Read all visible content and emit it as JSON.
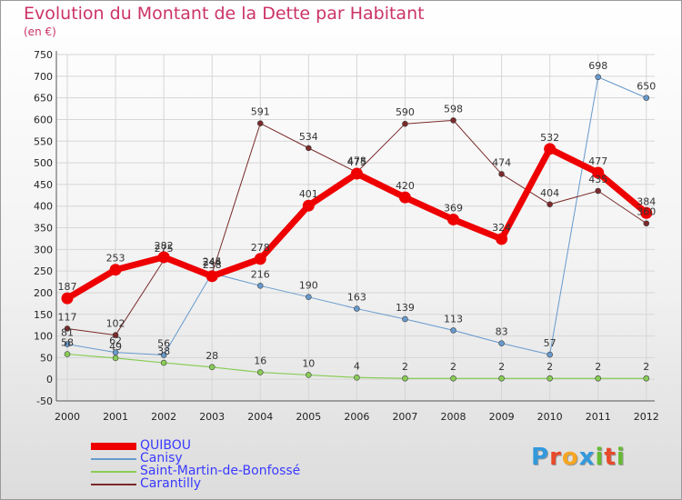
{
  "title": "Evolution du Montant de la Dette par Habitant",
  "subtitle": "(en €)",
  "logo": {
    "text": "Proxiti",
    "letters": [
      {
        "ch": "P",
        "color": "#3399dd"
      },
      {
        "ch": "r",
        "color": "#e84a2a"
      },
      {
        "ch": "o",
        "color": "#f5a623"
      },
      {
        "ch": "x",
        "color": "#3399dd"
      },
      {
        "ch": "i",
        "color": "#66bb33"
      },
      {
        "ch": "t",
        "color": "#e84a2a"
      },
      {
        "ch": "i",
        "color": "#66bb33"
      }
    ]
  },
  "chart_data": {
    "type": "line",
    "title": "Evolution du Montant de la Dette par Habitant",
    "subtitle": "(en €)",
    "xlabel": "",
    "ylabel": "",
    "x": [
      "2000",
      "2001",
      "2002",
      "2003",
      "2004",
      "2005",
      "2006",
      "2007",
      "2008",
      "2009",
      "2010",
      "2011",
      "2012"
    ],
    "ylim": [
      -50,
      750
    ],
    "yticks": [
      "-50",
      "0",
      "50",
      "100",
      "150",
      "200",
      "250",
      "300",
      "350",
      "400",
      "450",
      "500",
      "550",
      "600",
      "650",
      "700",
      "750"
    ],
    "grid": true,
    "legend_position": "bottom-left",
    "series": [
      {
        "name": "QUIBOU",
        "color": "#ee0000",
        "values": [
          187,
          253,
          282,
          238,
          278,
          401,
          475,
          420,
          369,
          324,
          532,
          477,
          384
        ]
      },
      {
        "name": "Canisy",
        "color": "#6699cc",
        "values": [
          81,
          62,
          56,
          245,
          216,
          190,
          163,
          139,
          113,
          83,
          57,
          698,
          650
        ]
      },
      {
        "name": "Saint-Martin-de-Bonfossé",
        "color": "#88cc55",
        "values": [
          58,
          49,
          38,
          28,
          16,
          10,
          4,
          2,
          2,
          2,
          2,
          2,
          2
        ]
      },
      {
        "name": "Carantilly",
        "color": "#7a2a2a",
        "values": [
          117,
          102,
          275,
          244,
          591,
          534,
          478,
          590,
          598,
          474,
          404,
          435,
          360
        ]
      }
    ],
    "data_labels": [
      [
        "187",
        "253",
        "282",
        "238",
        "278",
        "401",
        "475",
        "420",
        "369",
        "324",
        "532",
        "477",
        "384"
      ],
      [
        "81",
        "62",
        "56",
        "245",
        "216",
        "190",
        "163",
        "139",
        "113",
        "83",
        "57",
        "698",
        "650"
      ],
      [
        "58",
        "49",
        "38",
        "28",
        "16",
        "10",
        "4",
        "2",
        "2",
        "2",
        "2",
        "2",
        "2"
      ],
      [
        "117",
        "102",
        "275",
        "244",
        "591",
        "534",
        "478",
        "590",
        "598",
        "474",
        "404",
        "435",
        "360"
      ]
    ]
  }
}
